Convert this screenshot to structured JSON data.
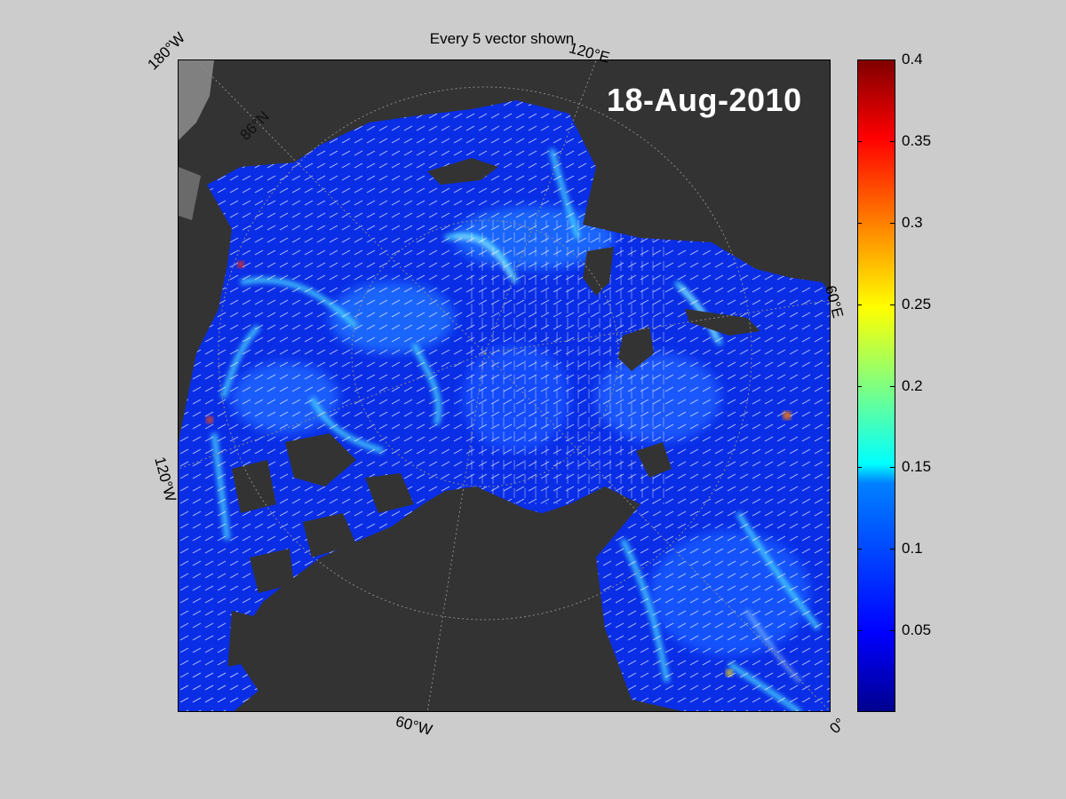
{
  "title": "Every 5 vector shown",
  "date": "18-Aug-2010",
  "labels": {
    "lon_180w": "180°W",
    "lon_120e": "120°E",
    "lon_60e": "60°E",
    "lon_120w": "120°W",
    "lon_60w": "60°W",
    "lon_0": "0°",
    "lat_86n": "86°N"
  },
  "colorbar": {
    "min": 0,
    "max": 0.4,
    "ticks": [
      "0.4",
      "0.35",
      "0.3",
      "0.25",
      "0.2",
      "0.15",
      "0.1",
      "0.05"
    ],
    "tick_values": [
      0.4,
      0.35,
      0.3,
      0.25,
      0.2,
      0.15,
      0.1,
      0.05
    ],
    "colormap": "jet"
  },
  "colors": {
    "background": "#cccccc",
    "land": "#333333",
    "ocean_low": "#0a24e8",
    "ocean_mid": "#1a78ff",
    "vector": "#ffffff"
  }
}
